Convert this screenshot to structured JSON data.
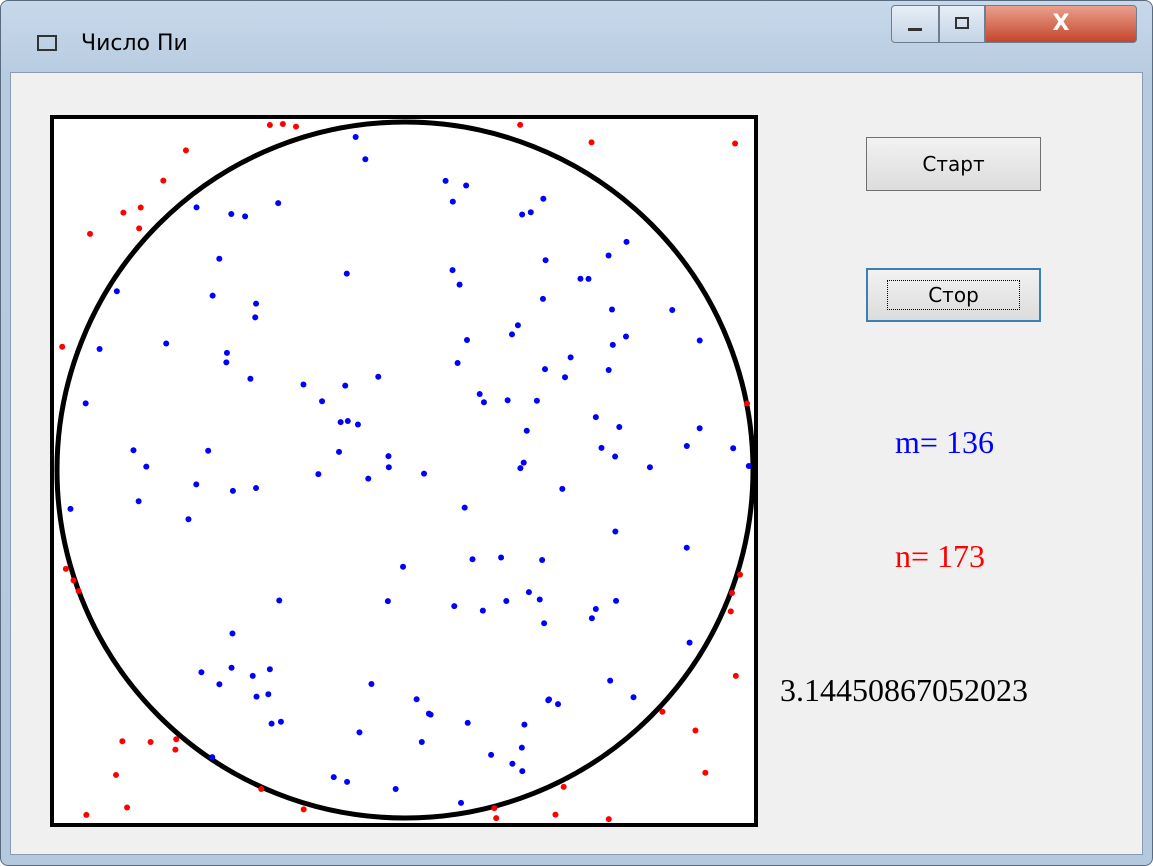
{
  "window": {
    "title": "Число Пи"
  },
  "buttons": {
    "start": "Старт",
    "stop": "Стор"
  },
  "labels": {
    "m": "m= 136",
    "n": "n= 173",
    "pi": "3.14450867052023"
  }
}
